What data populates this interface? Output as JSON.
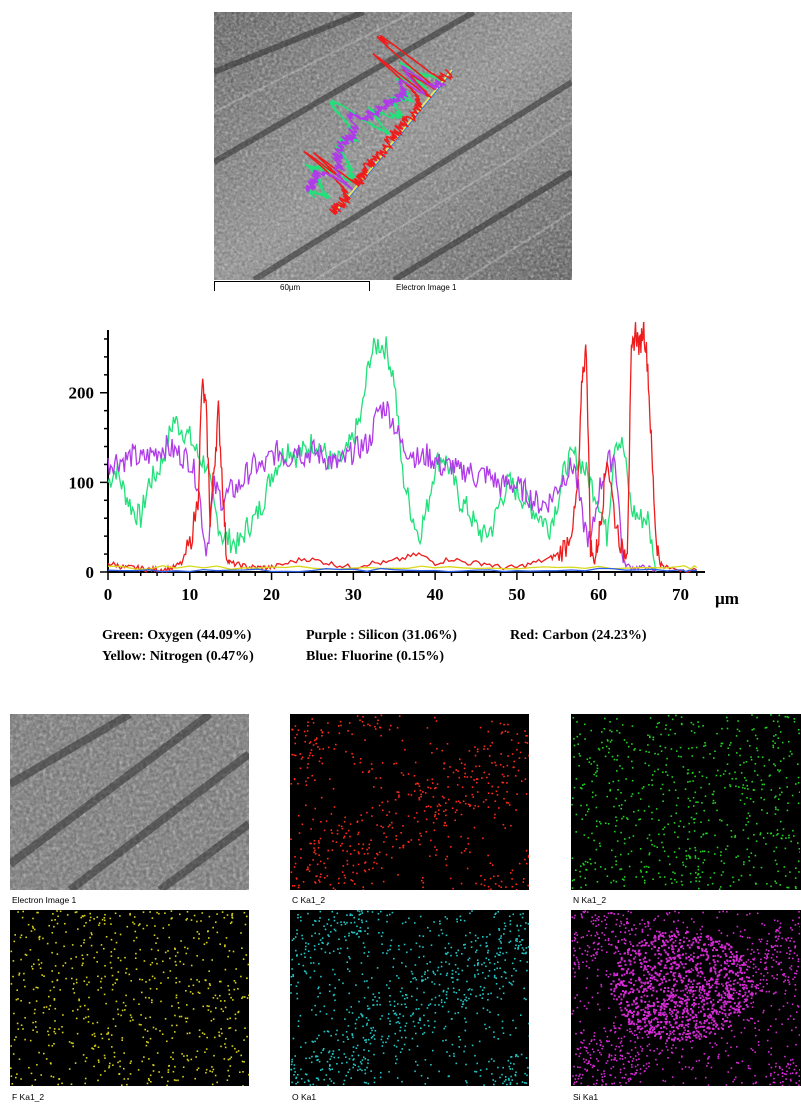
{
  "top_image": {
    "scale_label": "60µm",
    "caption": "Electron Image 1"
  },
  "legend": {
    "line1": [
      "Green: Oxygen (44.09%)",
      "Purple : Silicon (31.06%)",
      "Red: Carbon (24.23%)"
    ],
    "line2": [
      "Yellow: Nitrogen (0.47%)",
      "Blue: Fluorine (0.15%)"
    ]
  },
  "maps": [
    {
      "caption": "Electron Image 1",
      "type": "sem",
      "color": "#bdbdbd"
    },
    {
      "caption": "C Ka1_2",
      "type": "map",
      "color": "#ff2a1a"
    },
    {
      "caption": "N Ka1_2",
      "type": "map",
      "color": "#22d322"
    },
    {
      "caption": "F Ka1_2",
      "type": "map",
      "color": "#d6d21a"
    },
    {
      "caption": "O Ka1",
      "type": "map",
      "color": "#22c6c6"
    },
    {
      "caption": "Si Ka1",
      "type": "map",
      "color": "#d62ad6"
    }
  ],
  "chart_data": {
    "type": "line",
    "title": "",
    "xlabel": "µm",
    "ylabel": "",
    "xlim": [
      0,
      73
    ],
    "ylim": [
      0,
      270
    ],
    "xticks": [
      0,
      10,
      20,
      30,
      40,
      50,
      60,
      70
    ],
    "yticks": [
      0,
      100,
      200
    ],
    "series": [
      {
        "color": "#22e07a",
        "x": [
          0,
          1,
          2,
          3,
          4,
          5,
          6,
          7,
          8,
          9,
          10,
          11,
          12,
          13,
          14,
          15,
          16,
          17,
          18,
          19,
          20,
          21,
          22,
          23,
          24,
          25,
          26,
          27,
          28,
          29,
          30,
          31,
          32,
          33,
          34,
          35,
          36,
          37,
          38,
          39,
          40,
          41,
          42,
          43,
          44,
          45,
          46,
          47,
          48,
          49,
          50,
          51,
          52,
          53,
          54,
          55,
          56,
          57,
          58,
          59,
          60,
          61,
          62,
          63,
          64,
          65,
          66,
          67
        ],
        "y": [
          100,
          115,
          90,
          70,
          60,
          100,
          110,
          135,
          170,
          160,
          150,
          130,
          120,
          70,
          40,
          35,
          30,
          50,
          60,
          80,
          110,
          125,
          140,
          130,
          135,
          145,
          140,
          125,
          120,
          130,
          150,
          175,
          240,
          255,
          250,
          215,
          110,
          70,
          40,
          70,
          120,
          130,
          110,
          80,
          70,
          50,
          40,
          50,
          80,
          100,
          90,
          80,
          70,
          60,
          50,
          80,
          120,
          130,
          120,
          100,
          80,
          40,
          150,
          140,
          70,
          60,
          60,
          0
        ]
      },
      {
        "color": "#b03ce8",
        "x": [
          0,
          1,
          2,
          3,
          4,
          5,
          6,
          7,
          8,
          9,
          10,
          11,
          12,
          13,
          14,
          15,
          16,
          17,
          18,
          19,
          20,
          21,
          22,
          23,
          24,
          25,
          26,
          27,
          28,
          29,
          30,
          31,
          32,
          33,
          34,
          35,
          36,
          37,
          38,
          39,
          40,
          41,
          42,
          43,
          44,
          45,
          46,
          47,
          48,
          49,
          50,
          51,
          52,
          53,
          54,
          55,
          56,
          57,
          58,
          59,
          60,
          61,
          62,
          63,
          64,
          65,
          66,
          67
        ],
        "y": [
          120,
          125,
          125,
          130,
          125,
          130,
          135,
          140,
          135,
          130,
          125,
          100,
          20,
          95,
          80,
          90,
          95,
          110,
          120,
          115,
          130,
          135,
          125,
          140,
          130,
          135,
          130,
          125,
          120,
          125,
          135,
          140,
          145,
          180,
          185,
          165,
          140,
          135,
          125,
          130,
          125,
          115,
          120,
          110,
          115,
          105,
          110,
          105,
          95,
          100,
          95,
          90,
          80,
          75,
          80,
          95,
          110,
          120,
          60,
          30,
          90,
          120,
          130,
          10,
          5,
          5,
          5,
          0
        ]
      },
      {
        "color": "#ee1c1c",
        "x": [
          0,
          1,
          2,
          3,
          4,
          5,
          6,
          7,
          8,
          9,
          10,
          11,
          11.5,
          12,
          12.5,
          13,
          13.5,
          14,
          14.5,
          15,
          16,
          17,
          18,
          19,
          20,
          22,
          24,
          26,
          28,
          30,
          32,
          34,
          36,
          38,
          40,
          42,
          44,
          46,
          48,
          50,
          52,
          54,
          55,
          56,
          57,
          57.5,
          58,
          58.5,
          59,
          59.5,
          60,
          60.5,
          61,
          62,
          63,
          63.5,
          64,
          64.5,
          65,
          65.5,
          66,
          66.5,
          67,
          67.5,
          68,
          70,
          72
        ],
        "y": [
          10,
          8,
          5,
          5,
          4,
          3,
          3,
          3,
          5,
          10,
          30,
          80,
          210,
          180,
          60,
          120,
          180,
          100,
          15,
          10,
          8,
          6,
          5,
          5,
          5,
          10,
          15,
          12,
          8,
          5,
          10,
          10,
          15,
          20,
          10,
          15,
          10,
          10,
          5,
          5,
          10,
          15,
          20,
          30,
          60,
          100,
          220,
          250,
          30,
          10,
          40,
          80,
          130,
          60,
          20,
          30,
          240,
          270,
          250,
          275,
          230,
          130,
          40,
          10,
          5,
          3,
          2
        ]
      },
      {
        "color": "#d8d81a",
        "x": [
          0,
          10,
          20,
          30,
          40,
          50,
          60,
          70,
          72
        ],
        "y": [
          5,
          5,
          5,
          5,
          5,
          5,
          5,
          5,
          5
        ]
      },
      {
        "color": "#2a5ee8",
        "x": [
          0,
          10,
          20,
          30,
          40,
          50,
          60,
          70,
          72
        ],
        "y": [
          2,
          2,
          2,
          2,
          2,
          2,
          2,
          2,
          2
        ]
      }
    ]
  }
}
